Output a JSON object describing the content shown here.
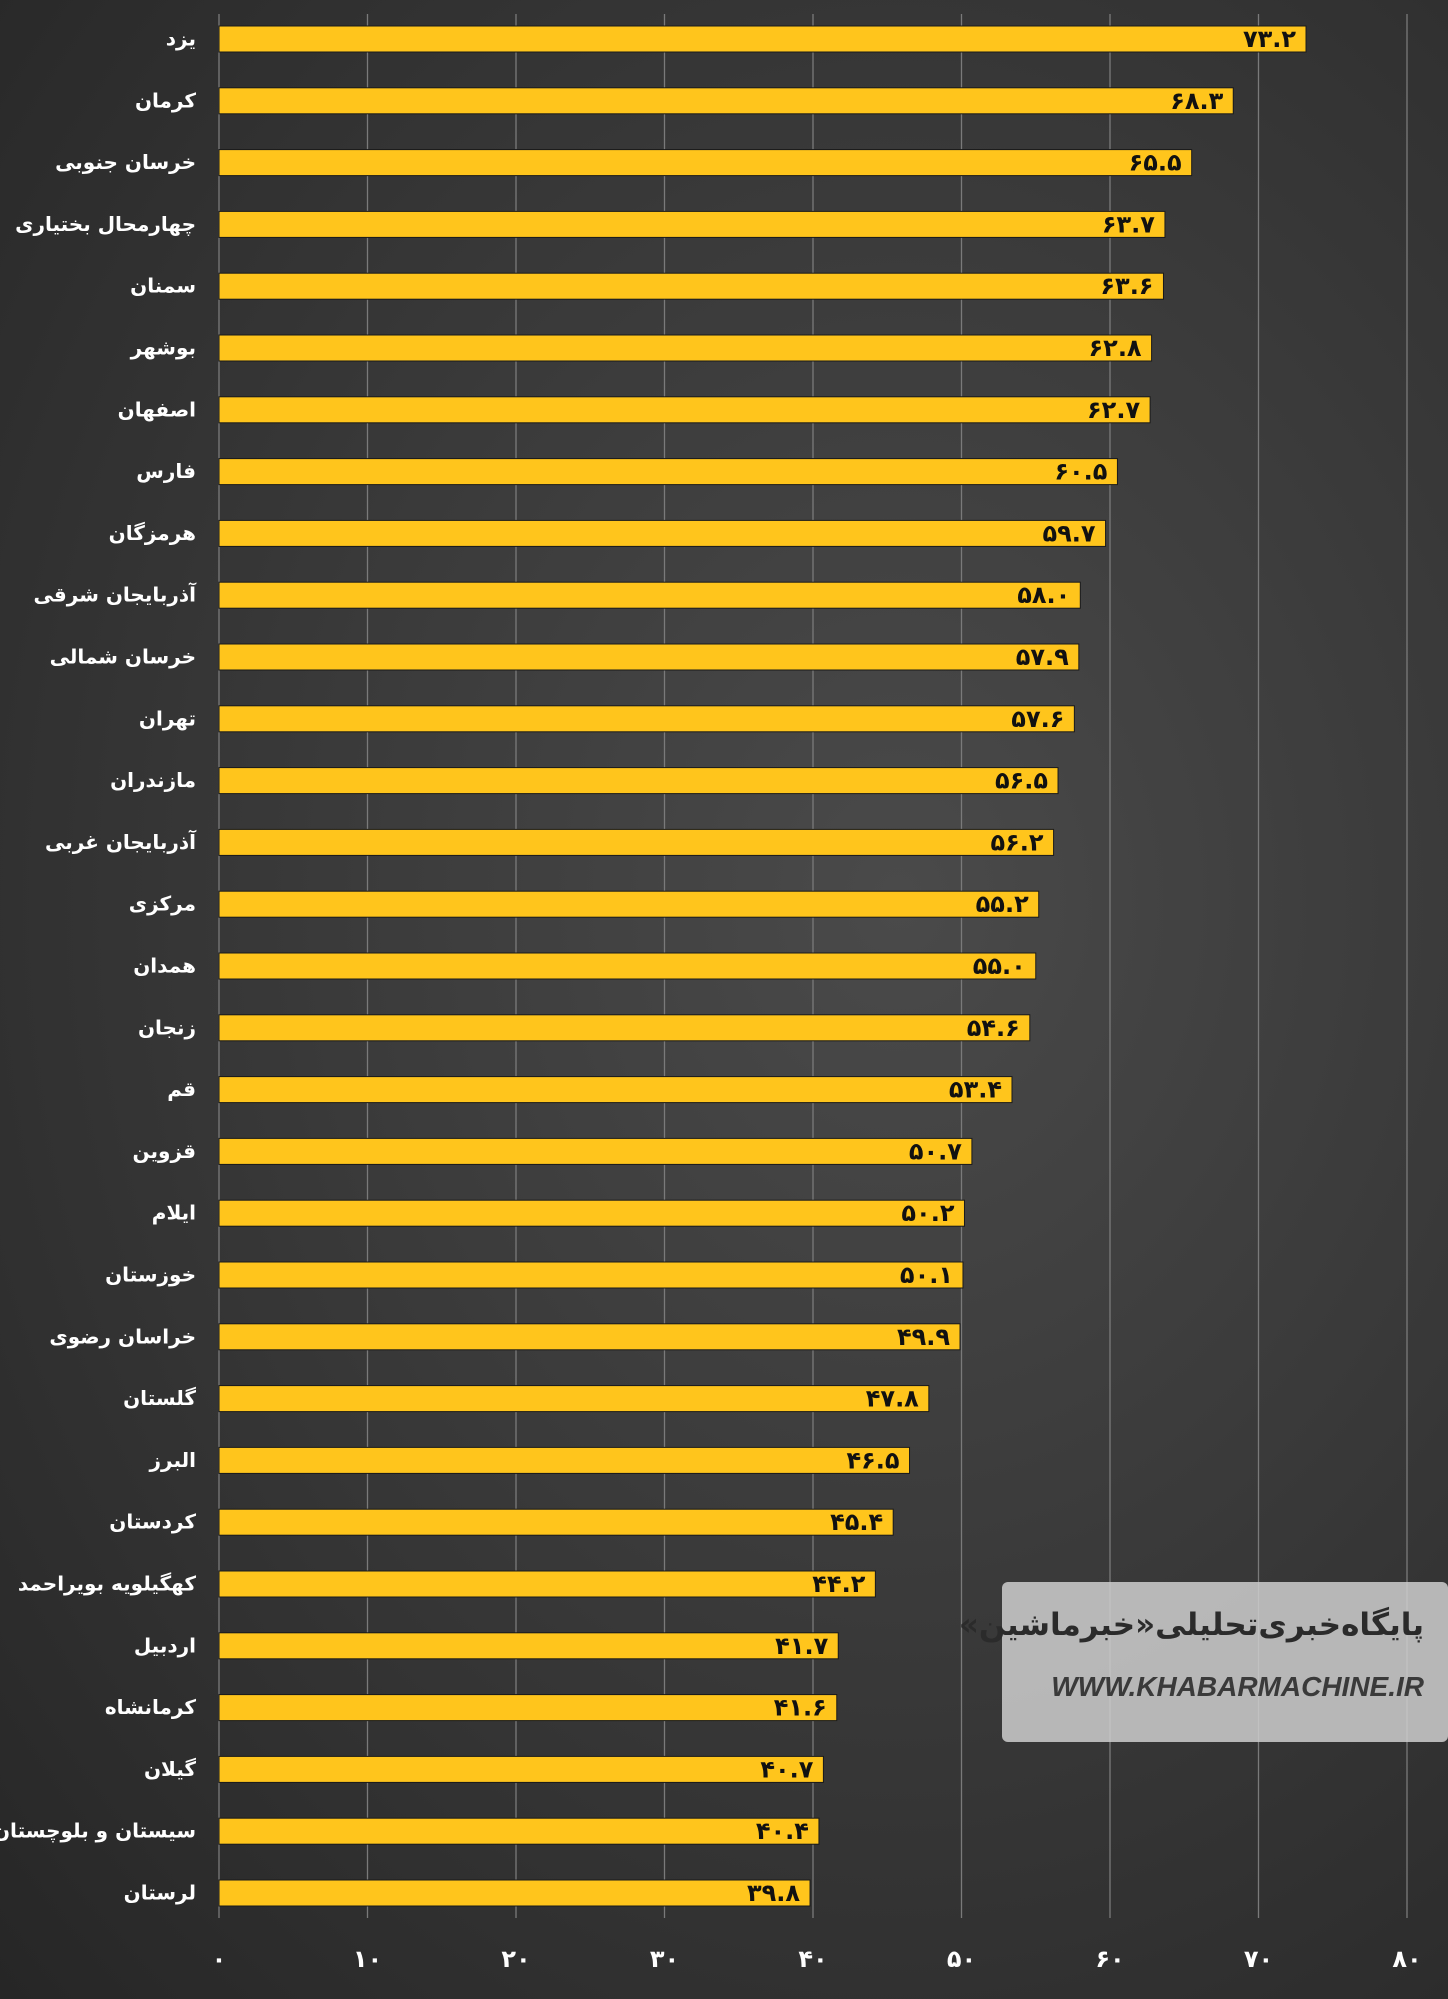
{
  "chart_data": {
    "type": "bar",
    "orientation": "horizontal",
    "categories": [
      "یزد",
      "کرمان",
      "خرسان جنوبی",
      "چهارمحال بختیاری",
      "سمنان",
      "بوشهر",
      "اصفهان",
      "فارس",
      "هرمزگان",
      "آذربایجان شرقی",
      "خرسان شمالی",
      "تهران",
      "مازندران",
      "آذربایجان غربی",
      "مرکزی",
      "همدان",
      "زنجان",
      "قم",
      "قزوین",
      "ایلام",
      "خوزستان",
      "خراسان رضوی",
      "گلستان",
      "البرز",
      "کردستان",
      "کهگیلویه بویراحمد",
      "اردبیل",
      "کرمانشاه",
      "گیلان",
      "سیستان و بلوچستان",
      "لرستان"
    ],
    "values": [
      73.2,
      68.3,
      65.5,
      63.7,
      63.6,
      62.8,
      62.7,
      60.5,
      59.7,
      58.0,
      57.9,
      57.6,
      56.5,
      56.2,
      55.2,
      55.0,
      54.6,
      53.4,
      50.7,
      50.2,
      50.1,
      49.9,
      47.8,
      46.5,
      45.4,
      44.2,
      41.7,
      41.6,
      40.7,
      40.4,
      39.8
    ],
    "value_labels": [
      "۷۳.۲",
      "۶۸.۳",
      "۶۵.۵",
      "۶۳.۷",
      "۶۳.۶",
      "۶۲.۸",
      "۶۲.۷",
      "۶۰.۵",
      "۵۹.۷",
      "۵۸.۰",
      "۵۷.۹",
      "۵۷.۶",
      "۵۶.۵",
      "۵۶.۲",
      "۵۵.۲",
      "۵۵.۰",
      "۵۴.۶",
      "۵۳.۴",
      "۵۰.۷",
      "۵۰.۲",
      "۵۰.۱",
      "۴۹.۹",
      "۴۷.۸",
      "۴۶.۵",
      "۴۵.۴",
      "۴۴.۲",
      "۴۱.۷",
      "۴۱.۶",
      "۴۰.۷",
      "۴۰.۴",
      "۳۹.۸"
    ],
    "xlim": [
      0,
      80
    ],
    "xticks": [
      0,
      10,
      20,
      30,
      40,
      50,
      60,
      70,
      80
    ],
    "xtick_labels": [
      "۰",
      "۱۰",
      "۲۰",
      "۳۰",
      "۴۰",
      "۵۰",
      "۶۰",
      "۷۰",
      "۸۰"
    ],
    "title": "",
    "xlabel": "",
    "ylabel": "",
    "grid": "vertical",
    "legend": "none",
    "colors": {
      "bar": "#FFC51C",
      "bar_edge": "#1a1a1a",
      "grid": "#7a7a7a",
      "category_label": "#ffffff",
      "value_label": "#111111",
      "tick_label": "#ffffff",
      "background": "#3a3a3a"
    }
  },
  "watermark": {
    "title": "پایگاه‌خبری‌تحلیلی«خبرماشین»",
    "url": "WWW.KHABARMACHINE.IR"
  }
}
